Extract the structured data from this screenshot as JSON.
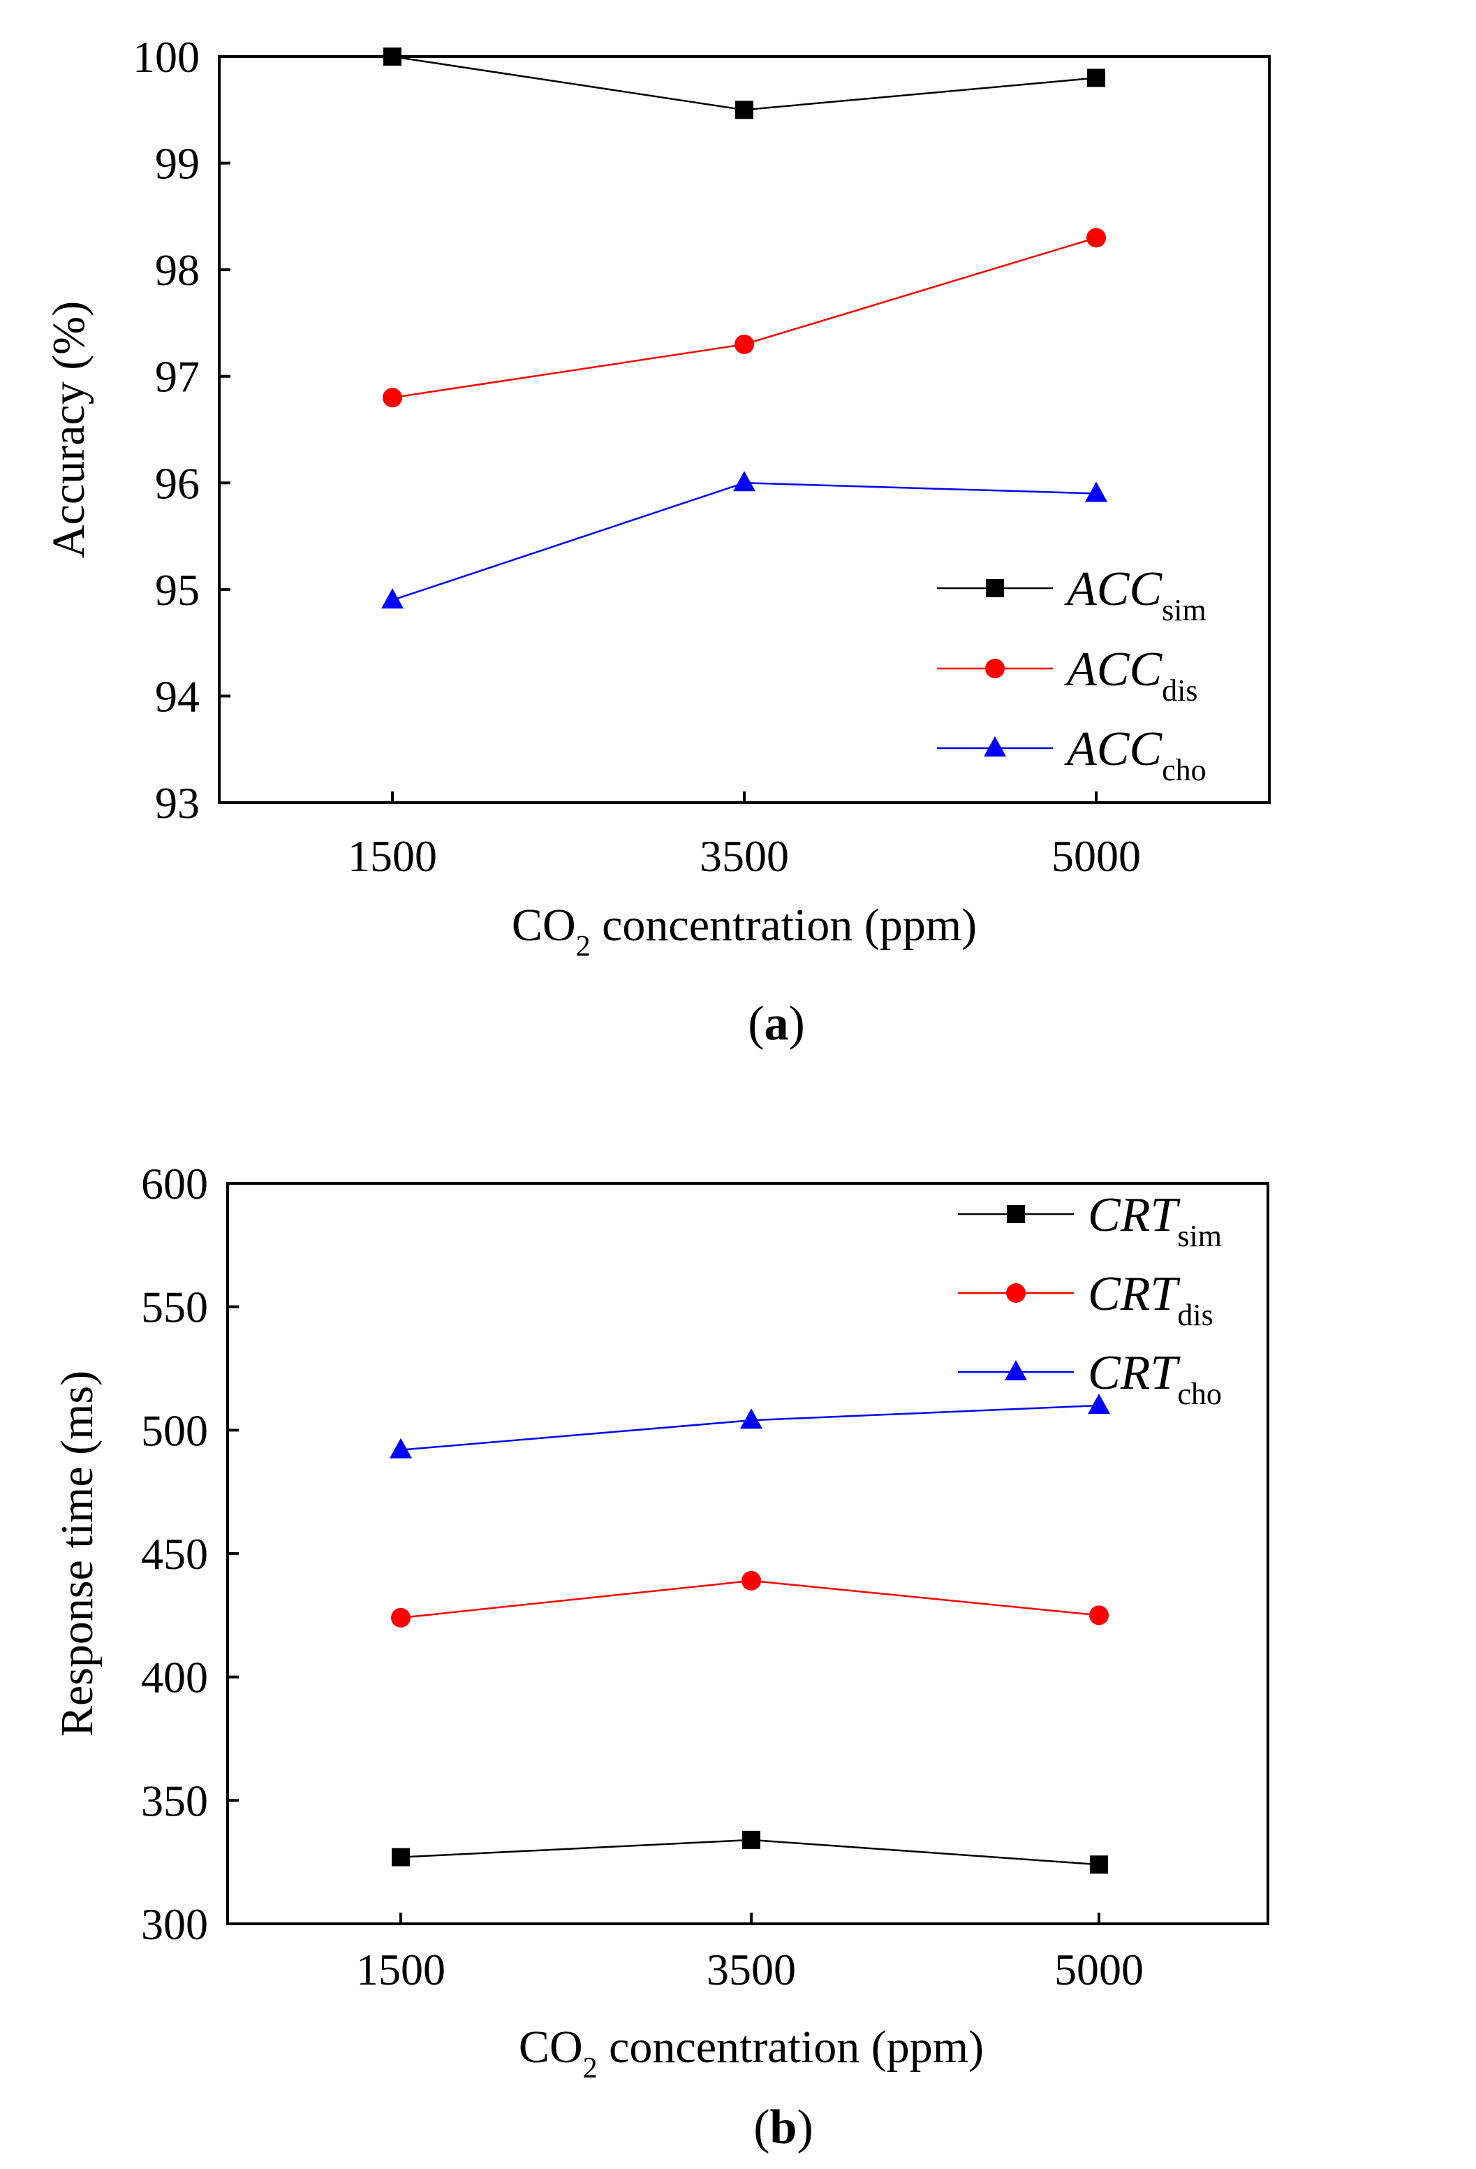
{
  "chart_data": [
    {
      "type": "line",
      "panel_label": "a",
      "categories": [
        "1500",
        "3500",
        "5000"
      ],
      "xlabel": {
        "prefix": "CO",
        "sub": "2",
        "suffix": " concentration (ppm)"
      },
      "ylabel": "Accuracy (%)",
      "ylim": [
        93,
        100
      ],
      "yticks": [
        "93",
        "94",
        "95",
        "96",
        "97",
        "98",
        "99",
        "100"
      ],
      "legend_position": "bottom-right",
      "series": [
        {
          "name": "ACC",
          "sub": "sim",
          "color": "#000000",
          "marker": "square",
          "values": [
            100.0,
            99.5,
            99.8
          ]
        },
        {
          "name": "ACC",
          "sub": "dis",
          "color": "#ff0000",
          "marker": "circle",
          "values": [
            96.8,
            97.3,
            98.3
          ]
        },
        {
          "name": "ACC",
          "sub": "cho",
          "color": "#0000ff",
          "marker": "triangle",
          "values": [
            94.9,
            96.0,
            95.9
          ]
        }
      ]
    },
    {
      "type": "line",
      "panel_label": "b",
      "categories": [
        "1500",
        "3500",
        "5000"
      ],
      "xlabel": {
        "prefix": "CO",
        "sub": "2",
        "suffix": " concentration (ppm)"
      },
      "ylabel": "Response time (ms)",
      "ylim": [
        300,
        600
      ],
      "yticks": [
        "300",
        "350",
        "400",
        "450",
        "500",
        "550",
        "600"
      ],
      "legend_position": "top-right",
      "series": [
        {
          "name": "CRT",
          "sub": "sim",
          "color": "#000000",
          "marker": "square",
          "values": [
            327,
            334,
            324
          ]
        },
        {
          "name": "CRT",
          "sub": "dis",
          "color": "#ff0000",
          "marker": "circle",
          "values": [
            424,
            439,
            425
          ]
        },
        {
          "name": "CRT",
          "sub": "cho",
          "color": "#0000ff",
          "marker": "triangle",
          "values": [
            492,
            504,
            510
          ]
        }
      ]
    }
  ]
}
